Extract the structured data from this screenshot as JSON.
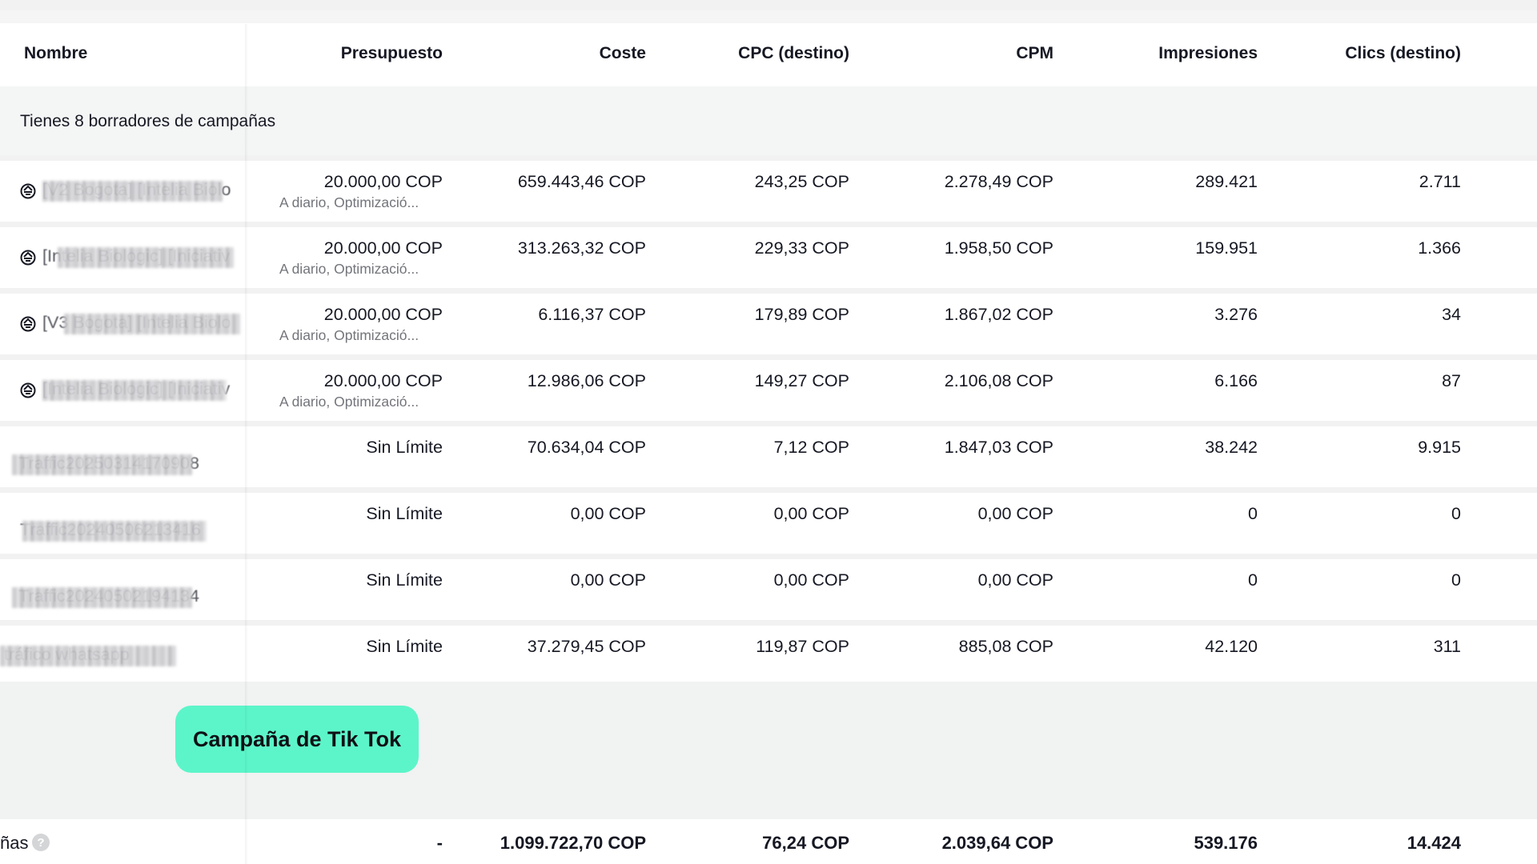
{
  "table": {
    "columns": [
      "Nombre",
      "Presupuesto",
      "Coste",
      "CPC (destino)",
      "CPM",
      "Impresiones",
      "Clics (destino)"
    ],
    "drafts_notice": "Tienes 8 borradores de campañas",
    "rows": [
      {
        "name": "[V2 Bogota] [Intelia Biolo",
        "budget": "20.000,00 COP",
        "budget_sub": "A diario, Optimizació...",
        "cost": "659.443,46 COP",
        "cpc": "243,25 COP",
        "cpm": "2.278,49 COP",
        "impressions": "289.421",
        "clicks": "2.711"
      },
      {
        "name": "[Intelia Biologic] [Iniciativ",
        "budget": "20.000,00 COP",
        "budget_sub": "A diario, Optimizació...",
        "cost": "313.263,32 COP",
        "cpc": "229,33 COP",
        "cpm": "1.958,50 COP",
        "impressions": "159.951",
        "clicks": "1.366"
      },
      {
        "name": "[V3 Bogota] [Intelia Biolo",
        "budget": "20.000,00 COP",
        "budget_sub": "A diario, Optimizació...",
        "cost": "6.116,37 COP",
        "cpc": "179,89 COP",
        "cpm": "1.867,02 COP",
        "impressions": "3.276",
        "clicks": "34"
      },
      {
        "name": "[Intelia Biologic] [Iniciativ",
        "budget": "20.000,00 COP",
        "budget_sub": "A diario, Optimizació...",
        "cost": "12.986,06 COP",
        "cpc": "149,27 COP",
        "cpm": "2.106,08 COP",
        "impressions": "6.166",
        "clicks": "87"
      },
      {
        "name": "Traffic20250314170908",
        "budget": "Sin Límite",
        "cost": "70.634,04 COP",
        "cpc": "7,12 COP",
        "cpm": "1.847,03 COP",
        "impressions": "38.242",
        "clicks": "9.915"
      },
      {
        "name": "Traffic20240506213416",
        "budget": "Sin Límite",
        "cost": "0,00 COP",
        "cpc": "0,00 COP",
        "cpm": "0,00 COP",
        "impressions": "0",
        "clicks": "0"
      },
      {
        "name": "Traffic20240502194134",
        "budget": "Sin Límite",
        "cost": "0,00 COP",
        "cpc": "0,00 COP",
        "cpm": "0,00 COP",
        "impressions": "0",
        "clicks": "0"
      },
      {
        "name": "tráfico whatsapp",
        "budget": "Sin Límite",
        "cost": "37.279,45 COP",
        "cpc": "119,87 COP",
        "cpm": "885,08 COP",
        "impressions": "42.120",
        "clicks": "311"
      }
    ],
    "footer": {
      "label": "ñas",
      "help_icon": "question-icon",
      "budget": "-",
      "cost": "1.099.722,70 COP",
      "cpc": "76,24 COP",
      "cpm": "2.039,64 COP",
      "impressions": "539.176",
      "clicks": "14.424"
    }
  },
  "overlay_tag": {
    "label": "Campaña de Tik Tok",
    "color": "#5cf5c9"
  },
  "icons": {
    "draft": "draft-status-icon"
  }
}
